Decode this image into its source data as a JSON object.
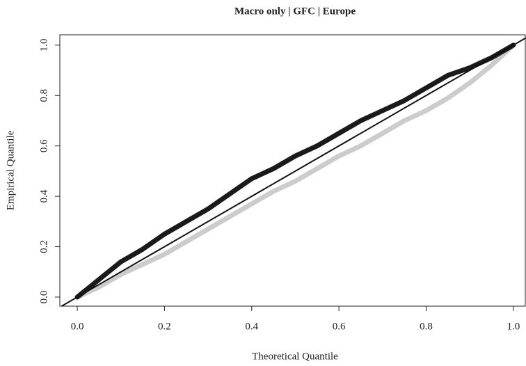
{
  "chart_data": {
    "type": "line",
    "title": "Macro only | GFC | Europe",
    "x_label": "Theoretical Quantile",
    "y_label": "Empirical Quantile",
    "x": [
      0,
      0.05,
      0.1,
      0.15,
      0.2,
      0.25,
      0.3,
      0.35,
      0.4,
      0.45,
      0.5,
      0.55,
      0.6,
      0.65,
      0.7,
      0.75,
      0.8,
      0.85,
      0.9,
      0.95,
      1.0
    ],
    "series": [
      {
        "color": "#cccccc",
        "values": [
          0,
          0.04,
          0.09,
          0.13,
          0.17,
          0.22,
          0.27,
          0.32,
          0.37,
          0.42,
          0.46,
          0.51,
          0.56,
          0.6,
          0.65,
          0.7,
          0.74,
          0.79,
          0.85,
          0.92,
          1.0
        ]
      },
      {
        "color": "#1a1a1a",
        "values": [
          0,
          0.07,
          0.14,
          0.19,
          0.25,
          0.3,
          0.35,
          0.41,
          0.47,
          0.51,
          0.56,
          0.6,
          0.65,
          0.7,
          0.74,
          0.78,
          0.83,
          0.88,
          0.91,
          0.95,
          1.0
        ]
      }
    ],
    "xlim": [
      -0.04,
      1.029
    ],
    "ylim": [
      -0.036,
      1.041
    ],
    "xticks": [
      {
        "value": 0,
        "label": "0.0"
      },
      0.2,
      0.4,
      0.6,
      0.8,
      {
        "value": 1,
        "label": "1.0"
      }
    ],
    "yticks": [
      {
        "value": 0,
        "label": "0.0"
      },
      0.2,
      0.4,
      0.6,
      0.8,
      {
        "value": 1,
        "label": "1.0"
      }
    ]
  }
}
